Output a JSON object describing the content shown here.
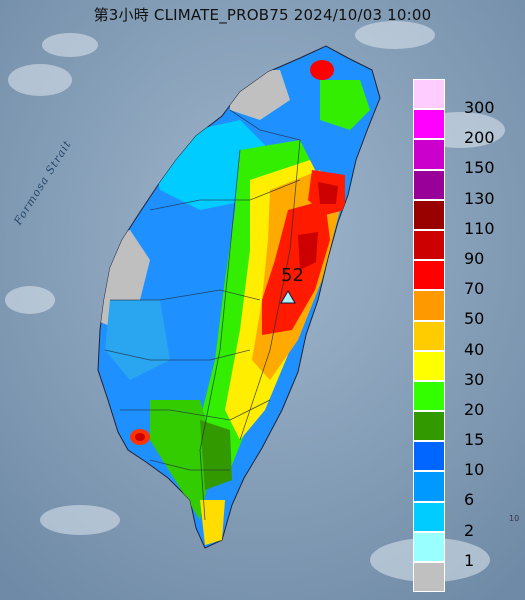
{
  "title": "第3小時  CLIMATE_PROB75 2024/10/03 10:00",
  "strait_label": "Formosa Strait",
  "station": {
    "value": "52",
    "marker": "triangle-marker-icon"
  },
  "edge_mark": "10",
  "legend": [
    {
      "label": "300",
      "color": "#ffccff"
    },
    {
      "label": "200",
      "color": "#ff00ff"
    },
    {
      "label": "150",
      "color": "#cc00cc"
    },
    {
      "label": "130",
      "color": "#990099"
    },
    {
      "label": "110",
      "color": "#990000"
    },
    {
      "label": "90",
      "color": "#cc0000"
    },
    {
      "label": "70",
      "color": "#ff0000"
    },
    {
      "label": "50",
      "color": "#ff9900"
    },
    {
      "label": "40",
      "color": "#ffcc00"
    },
    {
      "label": "30",
      "color": "#ffff00"
    },
    {
      "label": "20",
      "color": "#33ff00"
    },
    {
      "label": "15",
      "color": "#339900"
    },
    {
      "label": "10",
      "color": "#0066ff"
    },
    {
      "label": "6",
      "color": "#0099ff"
    },
    {
      "label": "2",
      "color": "#00ccff"
    },
    {
      "label": "1",
      "color": "#99ffff"
    },
    {
      "label": "",
      "color": "#c0c0c0"
    }
  ]
}
